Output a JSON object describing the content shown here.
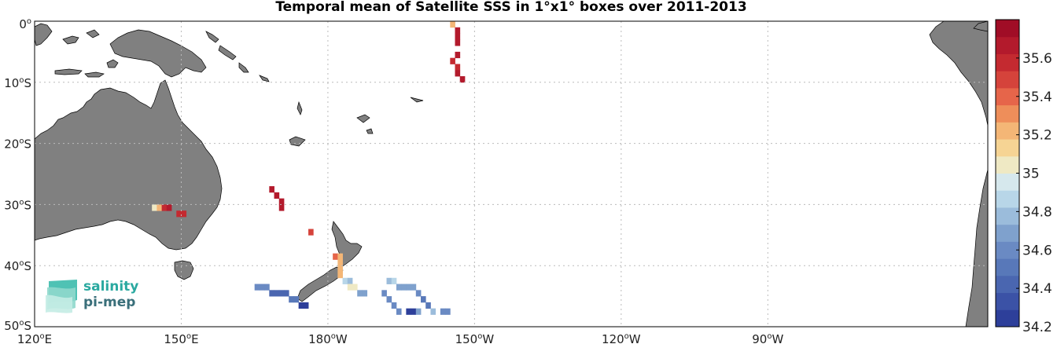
{
  "title": "Temporal mean of Satellite SSS in 1°x1° boxes over 2011-2013",
  "map": {
    "lon_range": [
      120,
      -75
    ],
    "lat_range": [
      0,
      -50
    ],
    "lon_ticks": [
      {
        "deg": "120",
        "suffix": "E"
      },
      {
        "deg": "150",
        "suffix": "E"
      },
      {
        "deg": "180",
        "suffix": "W"
      },
      {
        "deg": "150",
        "suffix": "W"
      },
      {
        "deg": "120",
        "suffix": "W"
      },
      {
        "deg": "90",
        "suffix": "W"
      }
    ],
    "lat_ticks": [
      {
        "deg": "0",
        "suffix": ""
      },
      {
        "deg": "10",
        "suffix": "S"
      },
      {
        "deg": "20",
        "suffix": "S"
      },
      {
        "deg": "30",
        "suffix": "S"
      },
      {
        "deg": "40",
        "suffix": "S"
      },
      {
        "deg": "50",
        "suffix": "S"
      }
    ],
    "grid": "dotted",
    "land_color": "#808080"
  },
  "colorbar": {
    "min": 34.2,
    "max": 35.8,
    "labels": [
      "35.6",
      "35.4",
      "35.2",
      "35",
      "34.8",
      "34.6",
      "34.4",
      "34.2"
    ],
    "colors": [
      "#2d3f9a",
      "#3b52a6",
      "#4a66b0",
      "#5878b9",
      "#6a8ac3",
      "#7fa1cd",
      "#9bbcdb",
      "#b8d6e8",
      "#d6e8ed",
      "#efe9c4",
      "#f6d494",
      "#f4b676",
      "#ee8e5a",
      "#e6654a",
      "#d5433b",
      "#c42a30",
      "#b31a2c",
      "#a00d26"
    ]
  },
  "chart_data": {
    "type": "heatmap",
    "title": "Temporal mean of Satellite SSS in 1°x1° boxes over 2011-2013",
    "variable": "SSS",
    "cells": [
      {
        "lon": -154.5,
        "lat": -0.5,
        "v": 35.2
      },
      {
        "lon": -153.5,
        "lat": -1.5,
        "v": 35.7
      },
      {
        "lon": -153.5,
        "lat": -2.5,
        "v": 35.7
      },
      {
        "lon": -153.5,
        "lat": -3.5,
        "v": 35.7
      },
      {
        "lon": -153.5,
        "lat": -5.5,
        "v": 35.7
      },
      {
        "lon": -154.5,
        "lat": -6.5,
        "v": 35.6
      },
      {
        "lon": -153.5,
        "lat": -7.5,
        "v": 35.6
      },
      {
        "lon": -153.5,
        "lat": -8.5,
        "v": 35.7
      },
      {
        "lon": -152.5,
        "lat": -9.5,
        "v": 35.7
      },
      {
        "lon": 144.5,
        "lat": -30.5,
        "v": 35.0
      },
      {
        "lon": 145.5,
        "lat": -30.5,
        "v": 35.2
      },
      {
        "lon": 146.5,
        "lat": -30.5,
        "v": 35.6
      },
      {
        "lon": 147.5,
        "lat": -30.5,
        "v": 35.7
      },
      {
        "lon": 149.5,
        "lat": -31.5,
        "v": 35.6
      },
      {
        "lon": 150.5,
        "lat": -31.5,
        "v": 35.6
      },
      {
        "lon": 168.5,
        "lat": -27.5,
        "v": 35.7
      },
      {
        "lon": 169.5,
        "lat": -28.5,
        "v": 35.7
      },
      {
        "lon": 170.5,
        "lat": -29.5,
        "v": 35.7
      },
      {
        "lon": 170.5,
        "lat": -30.5,
        "v": 35.7
      },
      {
        "lon": 176.5,
        "lat": -34.5,
        "v": 35.5
      },
      {
        "lon": -178.5,
        "lat": -38.5,
        "v": 35.4
      },
      {
        "lon": -177.5,
        "lat": -38.5,
        "v": 35.2
      },
      {
        "lon": -177.5,
        "lat": -39.5,
        "v": 35.2
      },
      {
        "lon": -177.5,
        "lat": -40.5,
        "v": 35.2
      },
      {
        "lon": -177.5,
        "lat": -41.5,
        "v": 35.2
      },
      {
        "lon": -176.5,
        "lat": -42.5,
        "v": 34.9
      },
      {
        "lon": -175.5,
        "lat": -42.5,
        "v": 34.8
      },
      {
        "lon": -175.5,
        "lat": -43.5,
        "v": 35.0
      },
      {
        "lon": -174.5,
        "lat": -43.5,
        "v": 35.0
      },
      {
        "lon": -173.5,
        "lat": -44.5,
        "v": 34.7
      },
      {
        "lon": -172.5,
        "lat": -44.5,
        "v": 34.7
      },
      {
        "lon": -167.5,
        "lat": -42.5,
        "v": 34.8
      },
      {
        "lon": -166.5,
        "lat": -42.5,
        "v": 34.9
      },
      {
        "lon": -165.5,
        "lat": -43.5,
        "v": 34.7
      },
      {
        "lon": -164.5,
        "lat": -43.5,
        "v": 34.7
      },
      {
        "lon": -163.5,
        "lat": -43.5,
        "v": 34.7
      },
      {
        "lon": -162.5,
        "lat": -43.5,
        "v": 34.7
      },
      {
        "lon": -168.5,
        "lat": -44.5,
        "v": 34.6
      },
      {
        "lon": -167.5,
        "lat": -45.5,
        "v": 34.6
      },
      {
        "lon": -161.5,
        "lat": -44.5,
        "v": 34.6
      },
      {
        "lon": -160.5,
        "lat": -45.5,
        "v": 34.5
      },
      {
        "lon": -166.5,
        "lat": -46.5,
        "v": 34.6
      },
      {
        "lon": -159.5,
        "lat": -46.5,
        "v": 34.5
      },
      {
        "lon": -165.5,
        "lat": -47.5,
        "v": 34.6
      },
      {
        "lon": -163.5,
        "lat": -47.5,
        "v": 34.2
      },
      {
        "lon": -162.5,
        "lat": -47.5,
        "v": 34.2
      },
      {
        "lon": -161.5,
        "lat": -47.5,
        "v": 34.7
      },
      {
        "lon": -158.5,
        "lat": -47.5,
        "v": 34.8
      },
      {
        "lon": -156.5,
        "lat": -47.5,
        "v": 34.6
      },
      {
        "lon": -155.5,
        "lat": -47.5,
        "v": 34.6
      },
      {
        "lon": 165.5,
        "lat": -43.5,
        "v": 34.6
      },
      {
        "lon": 166.5,
        "lat": -43.5,
        "v": 34.6
      },
      {
        "lon": 167.5,
        "lat": -43.5,
        "v": 34.6
      },
      {
        "lon": 168.5,
        "lat": -44.5,
        "v": 34.4
      },
      {
        "lon": 169.5,
        "lat": -44.5,
        "v": 34.4
      },
      {
        "lon": 170.5,
        "lat": -44.5,
        "v": 34.4
      },
      {
        "lon": 171.5,
        "lat": -44.5,
        "v": 34.4
      },
      {
        "lon": 172.5,
        "lat": -45.5,
        "v": 34.5
      },
      {
        "lon": 173.5,
        "lat": -45.5,
        "v": 34.5
      },
      {
        "lon": 174.5,
        "lat": -46.5,
        "v": 34.2
      },
      {
        "lon": 175.5,
        "lat": -46.5,
        "v": 34.2
      }
    ]
  },
  "logo": {
    "line1": "salinity",
    "line2": "pi-mep"
  }
}
